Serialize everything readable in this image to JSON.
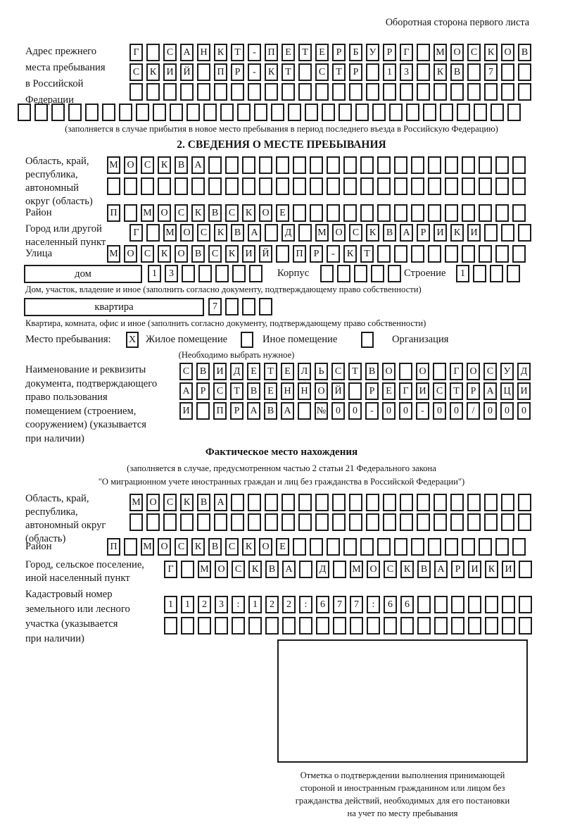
{
  "header": {
    "note": "Оборотная сторона первого листа"
  },
  "prev_address": {
    "label_lines": [
      "Адрес прежнего",
      "места пребывания",
      "в Российской",
      "Федерации"
    ],
    "row1": {
      "cells": "Г САНКТ-ПЕТЕРБУРГ МОСКОВ",
      "len": 24
    },
    "row2": {
      "cells": "СКИЙ ПР-КТ СТР 13 КВ 7",
      "len": 24
    },
    "row3": {
      "cells": "",
      "len": 24
    },
    "row4": {
      "cells": "",
      "len": 30
    },
    "note": "(заполняется в случае прибытия в новое место пребывания в период последнего въезда в Российскую Федерацию)"
  },
  "section2": {
    "title": "2. СВЕДЕНИЯ О МЕСТЕ ПРЕБЫВАНИЯ",
    "region": {
      "label_lines": [
        "Область, край,",
        "республика,",
        "автономный",
        "округ (область)"
      ],
      "row1": {
        "cells": "МОСКВА",
        "len": 25
      },
      "row2": {
        "cells": "",
        "len": 25
      }
    },
    "district": {
      "label": "Район",
      "row": {
        "cells": "П МОСКВСКОЕ",
        "len": 25
      }
    },
    "city": {
      "label_lines": [
        "Город или другой",
        "населенный пункт"
      ],
      "row": {
        "cells": "Г МОСКВА Д МОСКВАРИКИ",
        "len": 24
      }
    },
    "street": {
      "label": "Улица",
      "row": {
        "cells": "МОСКОВСКИЙ ПР-КТ",
        "len": 25
      }
    },
    "house": {
      "box_label": "дом",
      "row": {
        "cells": "13",
        "len": 7
      },
      "korpus_label": "Корпус",
      "korpus_row": {
        "cells": "",
        "len": 5
      },
      "stroenie_label": "Строение",
      "stroenie_row": {
        "cells": "1",
        "len": 4
      },
      "note": "Дом, участок, владение и иное (заполнить согласно документу, подтверждающему право собственности)"
    },
    "apartment": {
      "box_label": "квартира",
      "row": {
        "cells": "7",
        "len": 4
      },
      "note": "Квартира, комната, офис и иное (заполнить согласно документу, подтверждающему право собственности)"
    },
    "stay": {
      "label": "Место пребывания:",
      "options": [
        {
          "mark": "X",
          "label": "Жилое помещение"
        },
        {
          "mark": "",
          "label": "Иное помещение"
        },
        {
          "mark": "",
          "label": "Организация"
        }
      ],
      "note": "(Необходимо выбрать нужное)"
    },
    "document": {
      "label_lines": [
        "Наименование и реквизиты",
        "документа, подтверждающего",
        "право пользования",
        "помещением (строением,",
        "сооружением) (указывается",
        "при наличии)"
      ],
      "row1": {
        "cells": "СВИДЕТЕЛЬСТВО О ГОСУД",
        "len": 21
      },
      "row2": {
        "cells": "АРСТВЕННОЙ РЕГИСТРАЦИ",
        "len": 21
      },
      "row3": {
        "cells": "И ПРАВА №00-00-00/000",
        "len": 21
      }
    }
  },
  "actual_location": {
    "title": "Фактическое место нахождения",
    "note_lines": [
      "(заполняется в случае, предусмотренном частью 2 статьи 21 Федерального закона",
      "\"О миграционном учете иностранных граждан и лиц без гражданства в Российской Федерации\")"
    ],
    "region": {
      "label_lines": [
        "Область, край,",
        "республика,",
        "автономный округ",
        "(область)"
      ],
      "row1": {
        "cells": "МОСКВА",
        "len": 24
      },
      "row2": {
        "cells": "",
        "len": 24
      }
    },
    "district": {
      "label": "Район",
      "row": {
        "cells": "П МОСКВСКОЕ",
        "len": 25
      }
    },
    "city": {
      "label_lines": [
        "Город, сельское поселение,",
        "иной населенный пункт"
      ],
      "row": {
        "cells": "Г МОСКВА Д МОСКВАРИКИ",
        "len": 22
      }
    },
    "cadastral": {
      "label_lines": [
        "Кадастровый номер",
        "земельного или лесного",
        "участка (указывается",
        "при наличии)"
      ],
      "row1": {
        "cells": "1123:122:677:66",
        "len": 22
      },
      "row2": {
        "cells": "",
        "len": 22
      }
    }
  },
  "stamp": {
    "note_lines": [
      "Отметка о подтверждении выполнения принимающей",
      "стороной и иностранным гражданином или лицом без",
      "гражданства действий, необходимых для его постановки",
      "на учет по месту пребывания"
    ]
  }
}
